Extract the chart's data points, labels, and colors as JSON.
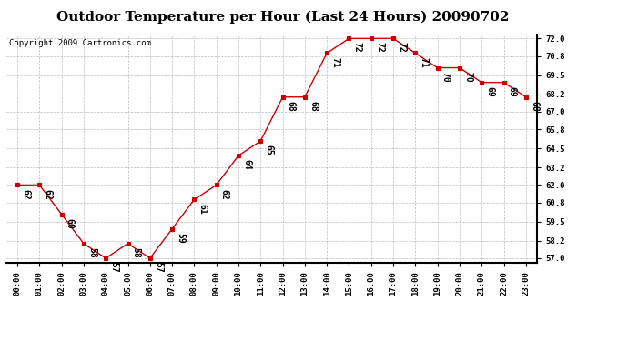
{
  "title": "Outdoor Temperature per Hour (Last 24 Hours) 20090702",
  "copyright": "Copyright 2009 Cartronics.com",
  "hours": [
    "00:00",
    "01:00",
    "02:00",
    "03:00",
    "04:00",
    "05:00",
    "06:00",
    "07:00",
    "08:00",
    "09:00",
    "10:00",
    "11:00",
    "12:00",
    "13:00",
    "14:00",
    "15:00",
    "16:00",
    "17:00",
    "18:00",
    "19:00",
    "20:00",
    "21:00",
    "22:00",
    "23:00"
  ],
  "temps": [
    62,
    62,
    60,
    58,
    57,
    58,
    57,
    59,
    61,
    62,
    64,
    65,
    68,
    68,
    71,
    72,
    72,
    72,
    71,
    70,
    70,
    69,
    69,
    68
  ],
  "ylim_min": 57.0,
  "ylim_max": 72.0,
  "line_color": "#cc0000",
  "marker_color": "#cc0000",
  "bg_color": "#ffffff",
  "grid_color": "#bbbbbb",
  "title_fontsize": 11,
  "copyright_fontsize": 6.5,
  "label_fontsize": 7,
  "tick_fontsize": 6.5,
  "yticks": [
    57.0,
    58.2,
    59.5,
    60.8,
    62.0,
    63.2,
    64.5,
    65.8,
    67.0,
    68.2,
    69.5,
    70.8,
    72.0
  ]
}
